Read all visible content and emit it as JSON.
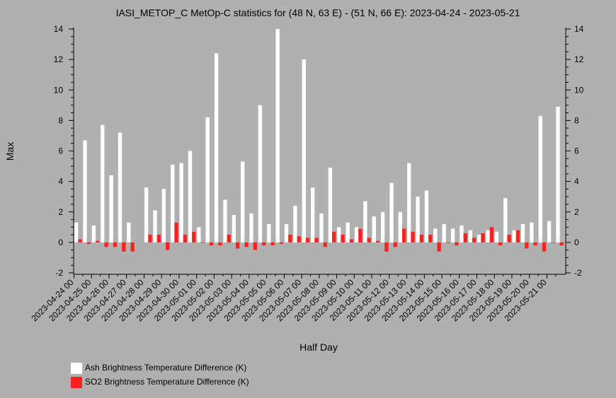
{
  "chart_data": {
    "type": "bar",
    "title": "IASI_METOP_C MetOp-C statistics for (48 N, 63 E) - (51 N, 66 E): 2023-04-24 - 2023-05-21",
    "xlabel": "Half Day",
    "ylabel": "Max",
    "ylim": [
      -2,
      14
    ],
    "yticks": [
      -2,
      0,
      2,
      4,
      6,
      8,
      10,
      12,
      14
    ],
    "grid": false,
    "legend_position": "bottom-left",
    "x_tick_labels": [
      "2023-04-24 00",
      "2023-04-25 00",
      "2023-04-26 00",
      "2023-04-27 00",
      "2023-04-28 00",
      "2023-04-29 00",
      "2023-04-30 00",
      "2023-05-01 00",
      "2023-05-02 00",
      "2023-05-03 00",
      "2023-05-04 00",
      "2023-05-05 00",
      "2023-05-06 00",
      "2023-05-07 00",
      "2023-05-08 00",
      "2023-05-09 00",
      "2023-05-10 00",
      "2023-05-11 00",
      "2023-05-12 00",
      "2023-05-13 00",
      "2023-05-14 00",
      "2023-05-15 00",
      "2023-05-16 00",
      "2023-05-17 00",
      "2023-05-18 00",
      "2023-05-19 00",
      "2023-05-20 00",
      "2023-05-21 00"
    ],
    "series": [
      {
        "name": "Ash Brightness Temperature Difference (K)",
        "color": "#ffffff",
        "values": [
          1.3,
          6.7,
          1.1,
          7.7,
          4.4,
          7.2,
          1.3,
          null,
          3.6,
          2.1,
          3.5,
          5.1,
          5.2,
          6.0,
          1.0,
          8.2,
          12.4,
          2.8,
          1.8,
          5.3,
          1.9,
          9.0,
          1.2,
          14.0,
          1.2,
          2.4,
          12.0,
          3.6,
          1.9,
          4.9,
          1.0,
          1.3,
          1.0,
          2.7,
          1.7,
          2.0,
          3.9,
          2.0,
          5.2,
          3.0,
          3.4,
          0.9,
          1.2,
          0.9,
          1.1,
          0.8,
          0.5,
          0.8,
          0.7,
          2.9,
          0.8,
          1.2,
          1.3,
          8.3,
          1.4,
          8.9
        ]
      },
      {
        "name": "SO2 Brightness Temperature Difference (K)",
        "color": "#ff2020",
        "values": [
          0.2,
          -0.1,
          0.1,
          -0.3,
          -0.3,
          -0.6,
          -0.6,
          null,
          0.5,
          0.5,
          -0.5,
          1.3,
          0.5,
          0.7,
          0.0,
          -0.2,
          -0.2,
          0.5,
          -0.4,
          -0.3,
          -0.5,
          -0.2,
          -0.2,
          -0.1,
          0.5,
          0.4,
          0.3,
          0.3,
          -0.3,
          0.7,
          0.5,
          0.2,
          0.9,
          0.3,
          0.1,
          -0.6,
          -0.3,
          0.9,
          0.7,
          0.5,
          0.5,
          -0.6,
          0.0,
          -0.2,
          0.6,
          0.3,
          0.6,
          1.0,
          -0.2,
          0.5,
          0.8,
          -0.4,
          -0.2,
          -0.6,
          0.0,
          -0.2
        ]
      }
    ]
  }
}
